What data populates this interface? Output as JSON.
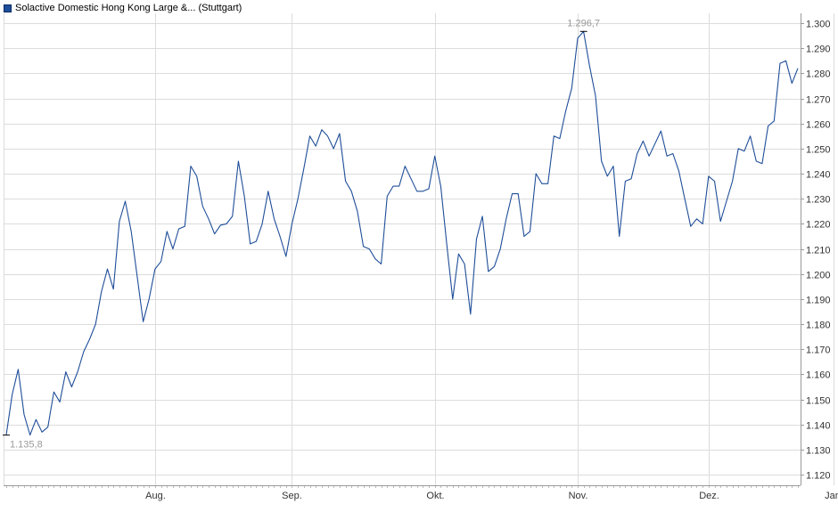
{
  "chart_data": {
    "type": "line",
    "legend_placement": "top-left",
    "grid": true,
    "ylim": [
      1.1158,
      1.3039
    ],
    "y_ticks": [
      "1.300",
      "1.290",
      "1.280",
      "1.270",
      "1.260",
      "1.250",
      "1.240",
      "1.230",
      "1.220",
      "1.210",
      "1.200",
      "1.190",
      "1.180",
      "1.170",
      "1.160",
      "1.150",
      "1.140",
      "1.130",
      "1.120"
    ],
    "y_tick_values": [
      1.3,
      1.29,
      1.28,
      1.27,
      1.26,
      1.25,
      1.24,
      1.23,
      1.22,
      1.21,
      1.2,
      1.19,
      1.18,
      1.17,
      1.16,
      1.15,
      1.14,
      1.13,
      1.12
    ],
    "x_ticks": [
      {
        "label": "Aug.",
        "index": 25
      },
      {
        "label": "Sep.",
        "index": 48
      },
      {
        "label": "Okt.",
        "index": 72
      },
      {
        "label": "Nov.",
        "index": 96
      },
      {
        "label": "Dez.",
        "index": 118
      },
      {
        "label": "Jan.",
        "index": 139
      }
    ],
    "series": [
      {
        "name": "Solactive Domestic Hong Kong Large &... (Stuttgart)",
        "color": "#1f4e99",
        "values": [
          1.1358,
          1.152,
          1.162,
          1.144,
          1.1358,
          1.142,
          1.137,
          1.139,
          1.153,
          1.149,
          1.161,
          1.155,
          1.161,
          1.169,
          1.174,
          1.18,
          1.193,
          1.202,
          1.194,
          1.221,
          1.229,
          1.217,
          1.199,
          1.181,
          1.19,
          1.202,
          1.205,
          1.217,
          1.21,
          1.218,
          1.219,
          1.243,
          1.239,
          1.227,
          1.222,
          1.216,
          1.2195,
          1.22,
          1.223,
          1.245,
          1.231,
          1.212,
          1.213,
          1.22,
          1.233,
          1.222,
          1.215,
          1.207,
          1.22,
          1.23,
          1.242,
          1.255,
          1.251,
          1.2575,
          1.255,
          1.25,
          1.256,
          1.237,
          1.233,
          1.225,
          1.211,
          1.21,
          1.206,
          1.204,
          1.231,
          1.235,
          1.235,
          1.243,
          1.238,
          1.233,
          1.233,
          1.234,
          1.247,
          1.235,
          1.212,
          1.19,
          1.208,
          1.204,
          1.184,
          1.214,
          1.223,
          1.201,
          1.203,
          1.21,
          1.222,
          1.232,
          1.232,
          1.215,
          1.217,
          1.24,
          1.236,
          1.236,
          1.255,
          1.254,
          1.265,
          1.274,
          1.294,
          1.2967,
          1.283,
          1.271,
          1.245,
          1.239,
          1.243,
          1.215,
          1.237,
          1.238,
          1.248,
          1.253,
          1.247,
          1.252,
          1.257,
          1.247,
          1.248,
          1.241,
          1.23,
          1.219,
          1.222,
          1.22,
          1.239,
          1.237,
          1.221,
          1.229,
          1.237,
          1.25,
          1.249,
          1.255,
          1.245,
          1.244,
          1.259,
          1.261,
          1.284,
          1.285,
          1.276,
          1.282
        ]
      }
    ],
    "annotations": [
      {
        "label": "1.296,7",
        "kind": "max",
        "index": 97,
        "value": 1.2967
      },
      {
        "label": "1.135,8",
        "kind": "min",
        "index": 0,
        "value": 1.1358
      }
    ]
  }
}
